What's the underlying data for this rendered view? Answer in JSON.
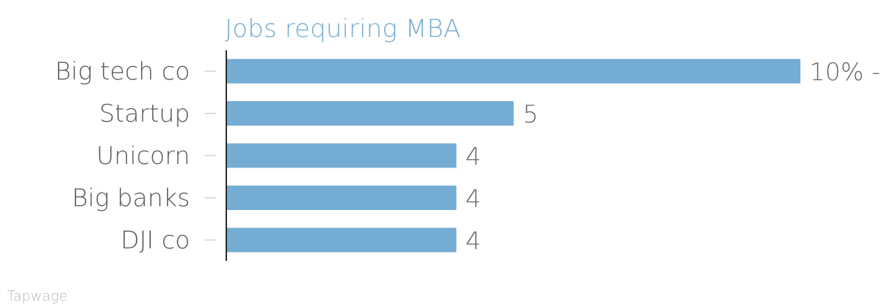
{
  "chart_data": {
    "type": "bar",
    "orientation": "horizontal",
    "title": "Jobs requiring MBA",
    "categories": [
      "Big tech co",
      "Startup",
      "Unicorn",
      "Big banks",
      "DJI co"
    ],
    "values": [
      10,
      5,
      4,
      4,
      4
    ],
    "value_labels": [
      "10% -",
      "5",
      "4",
      "4",
      "4"
    ],
    "xlim": [
      0,
      10
    ],
    "grid": false,
    "legend": "none",
    "bar_color": "#74acd3"
  },
  "source": "Tapwage"
}
